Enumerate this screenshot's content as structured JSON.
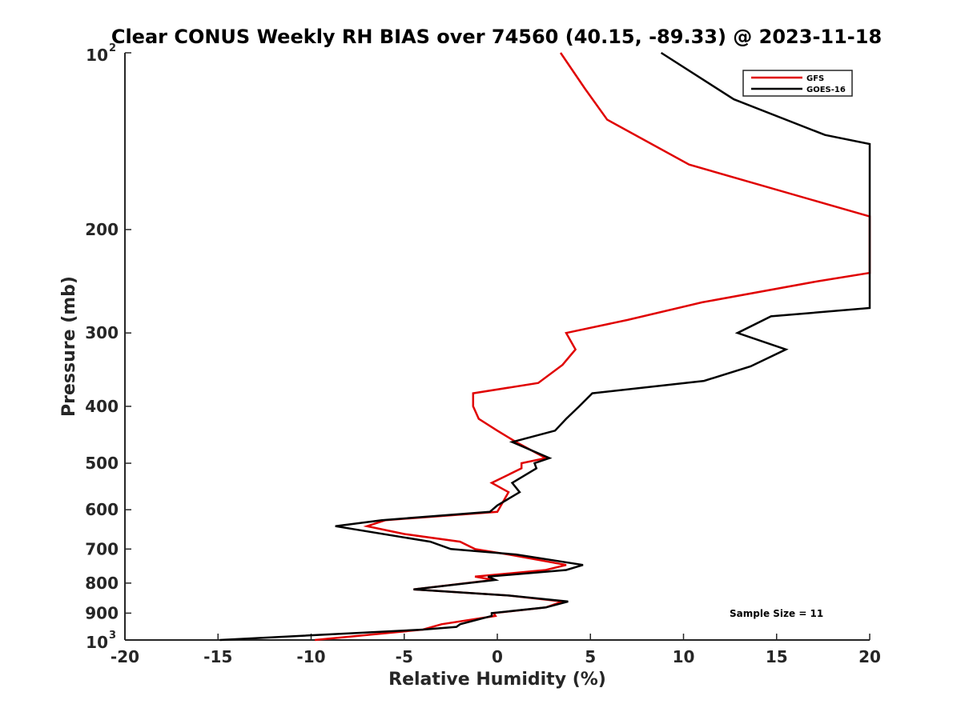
{
  "chart_data": {
    "type": "line",
    "title": "Clear CONUS Weekly RH BIAS over 74560 (40.15, -89.33) @ 2023-11-18",
    "xlabel": "Relative Humidity (%)",
    "ylabel": "Pressure (mb)",
    "xlim": [
      -20,
      20
    ],
    "ylim": [
      100,
      1000
    ],
    "y_scale": "log",
    "y_reversed": true,
    "grid": false,
    "legend_position": "top-right",
    "x_ticks": [
      "-20",
      "-15",
      "-10",
      "-5",
      "0",
      "5",
      "10",
      "15",
      "20"
    ],
    "y_ticks": [
      {
        "value": 100,
        "base": "10",
        "exp": "2"
      },
      {
        "value": 200,
        "label": "200"
      },
      {
        "value": 300,
        "label": "300"
      },
      {
        "value": 400,
        "label": "400"
      },
      {
        "value": 500,
        "label": "500"
      },
      {
        "value": 600,
        "label": "600"
      },
      {
        "value": 700,
        "label": "700"
      },
      {
        "value": 800,
        "label": "800"
      },
      {
        "value": 900,
        "label": "900"
      },
      {
        "value": 1000,
        "base": "10",
        "exp": "3"
      }
    ],
    "series": [
      {
        "name": "GFS",
        "color": "#e00000",
        "points": [
          [
            3.4,
            100
          ],
          [
            4.7,
            115
          ],
          [
            5.9,
            130
          ],
          [
            10.3,
            155
          ],
          [
            20.0,
            190
          ],
          [
            20.0,
            237
          ],
          [
            17.2,
            245
          ],
          [
            11.0,
            266
          ],
          [
            7.0,
            285
          ],
          [
            3.7,
            300
          ],
          [
            4.2,
            320
          ],
          [
            3.5,
            340
          ],
          [
            2.2,
            365
          ],
          [
            -1.3,
            380
          ],
          [
            -1.3,
            400
          ],
          [
            -1.0,
            420
          ],
          [
            0.0,
            440
          ],
          [
            1.0,
            460
          ],
          [
            2.6,
            490
          ],
          [
            1.3,
            500
          ],
          [
            1.3,
            510
          ],
          [
            -0.3,
            540
          ],
          [
            0.6,
            560
          ],
          [
            0.2,
            590
          ],
          [
            0.0,
            605
          ],
          [
            -6.0,
            625
          ],
          [
            -7.0,
            640
          ],
          [
            -5.0,
            660
          ],
          [
            -2.0,
            680
          ],
          [
            -1.2,
            700
          ],
          [
            0.6,
            715
          ],
          [
            3.7,
            745
          ],
          [
            2.6,
            760
          ],
          [
            -1.2,
            780
          ],
          [
            -0.2,
            790
          ],
          [
            -4.5,
            820
          ],
          [
            0.6,
            840
          ],
          [
            3.5,
            860
          ],
          [
            2.6,
            880
          ],
          [
            -0.2,
            900
          ],
          [
            -0.1,
            910
          ],
          [
            -3.0,
            940
          ],
          [
            -4.0,
            960
          ],
          [
            -9.8,
            1000
          ]
        ]
      },
      {
        "name": "GOES-16",
        "color": "#000000",
        "points": [
          [
            8.8,
            100
          ],
          [
            12.7,
            120
          ],
          [
            17.6,
            138
          ],
          [
            20.0,
            143
          ],
          [
            20.0,
            272
          ],
          [
            14.7,
            281
          ],
          [
            12.9,
            300
          ],
          [
            15.5,
            320
          ],
          [
            13.6,
            342
          ],
          [
            11.1,
            362
          ],
          [
            5.1,
            380
          ],
          [
            4.4,
            400
          ],
          [
            3.7,
            420
          ],
          [
            3.1,
            440
          ],
          [
            0.8,
            460
          ],
          [
            2.8,
            490
          ],
          [
            2.0,
            500
          ],
          [
            2.1,
            510
          ],
          [
            0.8,
            540
          ],
          [
            1.2,
            560
          ],
          [
            0.0,
            590
          ],
          [
            -0.4,
            605
          ],
          [
            -6.2,
            625
          ],
          [
            -8.7,
            640
          ],
          [
            -3.6,
            680
          ],
          [
            -2.5,
            700
          ],
          [
            1.0,
            715
          ],
          [
            4.6,
            745
          ],
          [
            3.7,
            760
          ],
          [
            -0.5,
            780
          ],
          [
            -0.1,
            790
          ],
          [
            -4.5,
            820
          ],
          [
            0.6,
            840
          ],
          [
            3.8,
            860
          ],
          [
            2.6,
            880
          ],
          [
            -0.3,
            900
          ],
          [
            -0.3,
            910
          ],
          [
            -2.0,
            940
          ],
          [
            -2.2,
            950
          ],
          [
            -4.0,
            960
          ],
          [
            -14.9,
            1000
          ]
        ]
      }
    ],
    "annotation": "Sample Size = 11"
  }
}
